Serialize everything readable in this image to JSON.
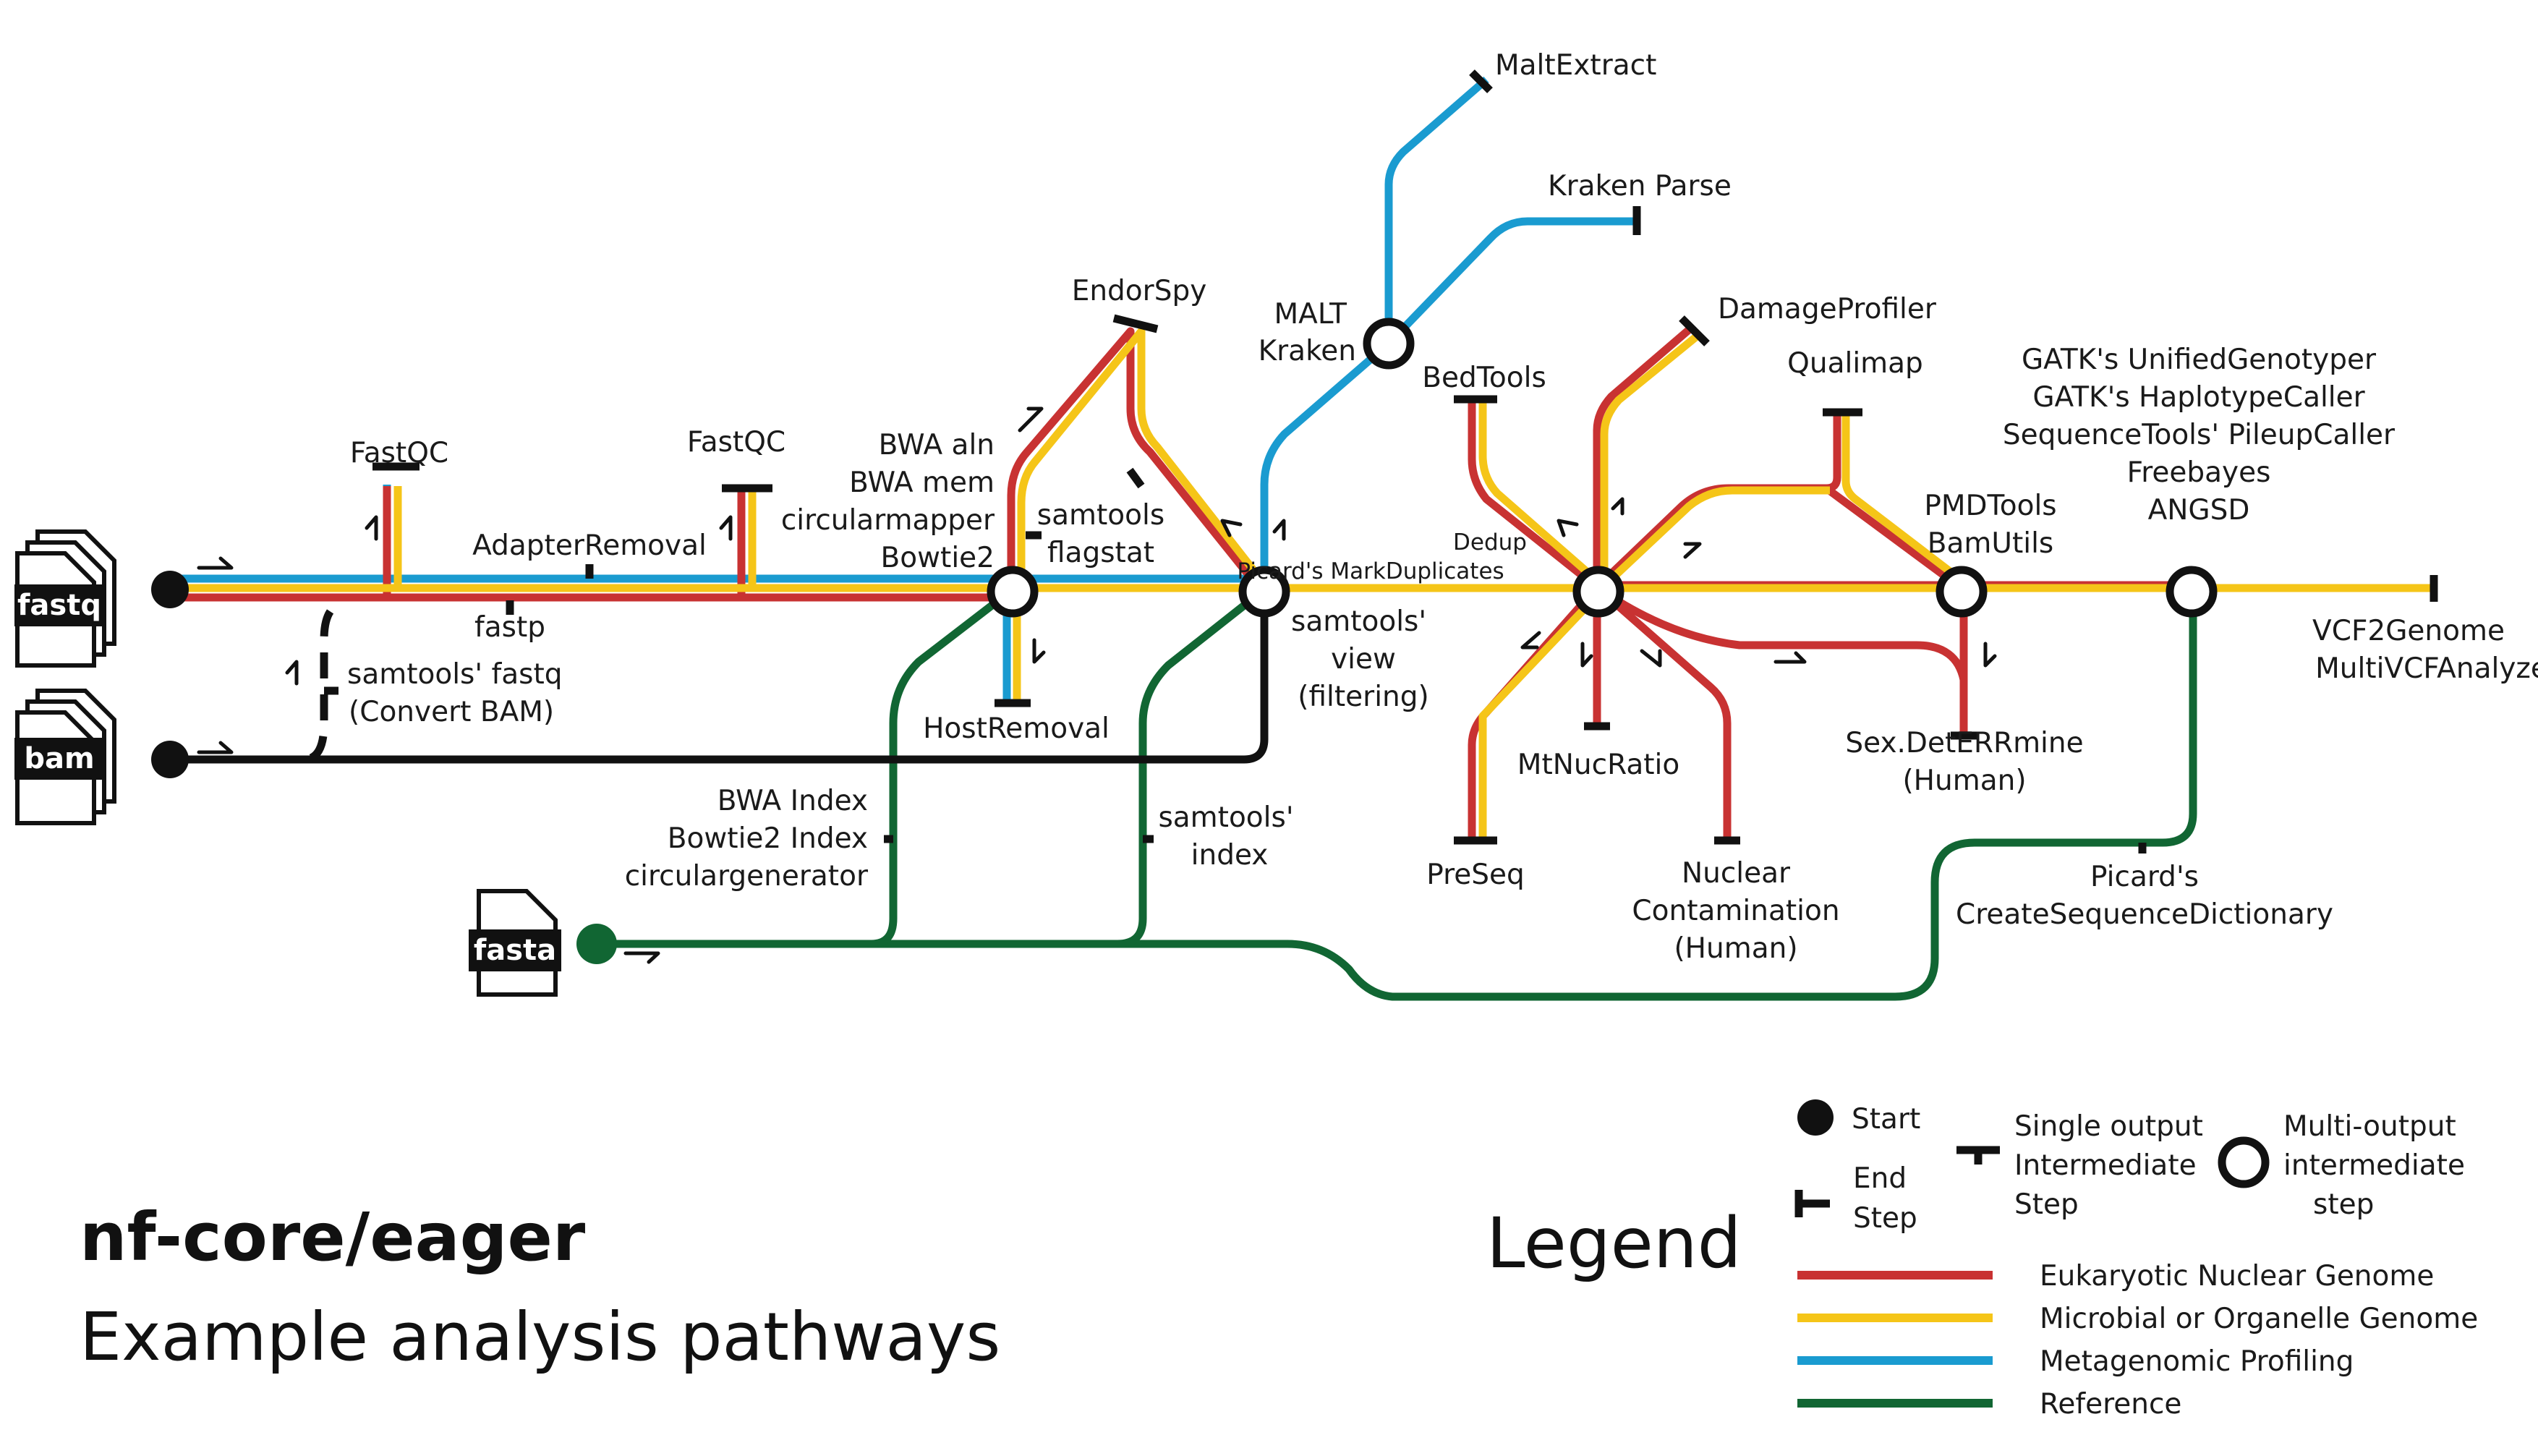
{
  "title": "nf-core/eager",
  "subtitle": "Example analysis pathways",
  "inputs": {
    "fastq": "fastq",
    "bam": "bam",
    "fasta": "fasta"
  },
  "steps": {
    "fastqc_1": "FastQC",
    "fastqc_2": "FastQC",
    "adapter_removal": "AdapterRemoval",
    "fastp": "fastp",
    "samtools_fastq_1": "samtools' fastq",
    "samtools_fastq_2": "(Convert BAM)",
    "bwa_aln": "BWA aln",
    "bwa_mem": "BWA mem",
    "circularmapper": "circularmapper",
    "bowtie2": "Bowtie2",
    "endorspy": "EndorSpy",
    "samtools_flagstat_1": "samtools",
    "samtools_flagstat_2": "flagstat",
    "host_removal": "HostRemoval",
    "bwa_index": "BWA Index",
    "bowtie2_index": "Bowtie2 Index",
    "circulargenerator": "circulargenerator",
    "samtools_index_1": "samtools'",
    "samtools_index_2": "index",
    "malt_extract": "MaltExtract",
    "kraken_parse": "Kraken Parse",
    "malt": "MALT",
    "kraken": "Kraken",
    "samtools_view_1": "samtools'",
    "samtools_view_2": "view",
    "samtools_view_3": "(filtering)",
    "bedtools": "BedTools",
    "dedup": "Dedup",
    "picard_markduplicates": "Picard's MarkDuplicates",
    "damageprofiler": "DamageProfiler",
    "qualimap": "Qualimap",
    "mtnucratio": "MtNucRatio",
    "preseq": "PreSeq",
    "nuclear_contamination_1": "Nuclear",
    "nuclear_contamination_2": "Contamination",
    "nuclear_contamination_3": "(Human)",
    "pmdtools": "PMDTools",
    "bamutils": "BamUtils",
    "sexdeterrmine_1": "Sex.DetERRmine",
    "sexdeterrmine_2": "(Human)",
    "genotypers": [
      "GATK's UnifiedGenotyper",
      "GATK's HaplotypeCaller",
      "SequenceTools' PileupCaller",
      "Freebayes",
      "ANGSD"
    ],
    "vcf2genome": "VCF2Genome",
    "multivcfanalyzer": "MultiVCFAnalyzer",
    "picard_csd_1": "Picard's",
    "picard_csd_2": "CreateSequenceDictionary"
  },
  "legend": {
    "title": "Legend",
    "start": "Start",
    "end_1": "End",
    "end_2": "Step",
    "single_1": "Single output",
    "single_2": "Intermediate",
    "single_3": "Step",
    "multi_1": "Multi-output",
    "multi_2": "intermediate",
    "multi_3": "step",
    "lines": [
      {
        "label": "Eukaryotic Nuclear Genome",
        "color": "#c83232"
      },
      {
        "label": "Microbial or Organelle Genome",
        "color": "#f5c518"
      },
      {
        "label": "Metagenomic Profiling",
        "color": "#1a9bd0"
      },
      {
        "label": "Reference",
        "color": "#116633"
      }
    ]
  }
}
